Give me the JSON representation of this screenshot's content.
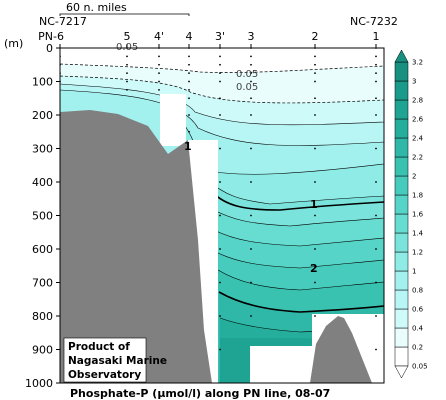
{
  "chart_data": {
    "type": "contour-section",
    "title": "Phosphate-P (µmol/l) along PN line, 08-07",
    "variable": "Phosphate-P",
    "unit": "µmol/l",
    "line": "PN line",
    "period": "08-07",
    "ylabel": "(m)",
    "ylim": [
      1000,
      0
    ],
    "y_ticks": [
      0,
      100,
      200,
      300,
      400,
      500,
      600,
      700,
      800,
      900,
      1000
    ],
    "scale_bar_label": "60 n. miles",
    "end_station_left": "NC-7217",
    "end_station_right": "NC-7232",
    "stations": [
      "PN-6",
      "5",
      "4'",
      "4",
      "3'",
      "3",
      "2",
      "1"
    ],
    "colorbar": {
      "levels": [
        0.05,
        0.2,
        0.4,
        0.6,
        0.8,
        1,
        1.2,
        1.4,
        1.6,
        1.8,
        2,
        2.2,
        2.4,
        2.6,
        2.8,
        3,
        3.2
      ],
      "colors": [
        "#ffffff",
        "#e9fdfd",
        "#cffafa",
        "#b8f6f6",
        "#a2f1ef",
        "#8eebe6",
        "#7ae4dc",
        "#67dcd1",
        "#56d4c7",
        "#47cbbc",
        "#3ac2b1",
        "#2fb8a7",
        "#26ae9d",
        "#1fa494",
        "#1a9a8b",
        "#178f81"
      ]
    },
    "labeled_contours": [
      {
        "value": "0.05",
        "depth_m": 20,
        "at": "PN-6/5"
      },
      {
        "value": "0.05",
        "depth_m": 70,
        "at": "3'/3"
      },
      {
        "value": "0.05",
        "depth_m": 105,
        "at": "3'/3"
      },
      {
        "value": "1",
        "depth_m": 485,
        "at": "2/1"
      },
      {
        "value": "2",
        "depth_m": 650,
        "at": "2/1"
      },
      {
        "value": "1",
        "depth_m": 225,
        "at": "4"
      }
    ],
    "credit": [
      "Product of",
      "Nagasaki Marine",
      "Observatory"
    ]
  }
}
